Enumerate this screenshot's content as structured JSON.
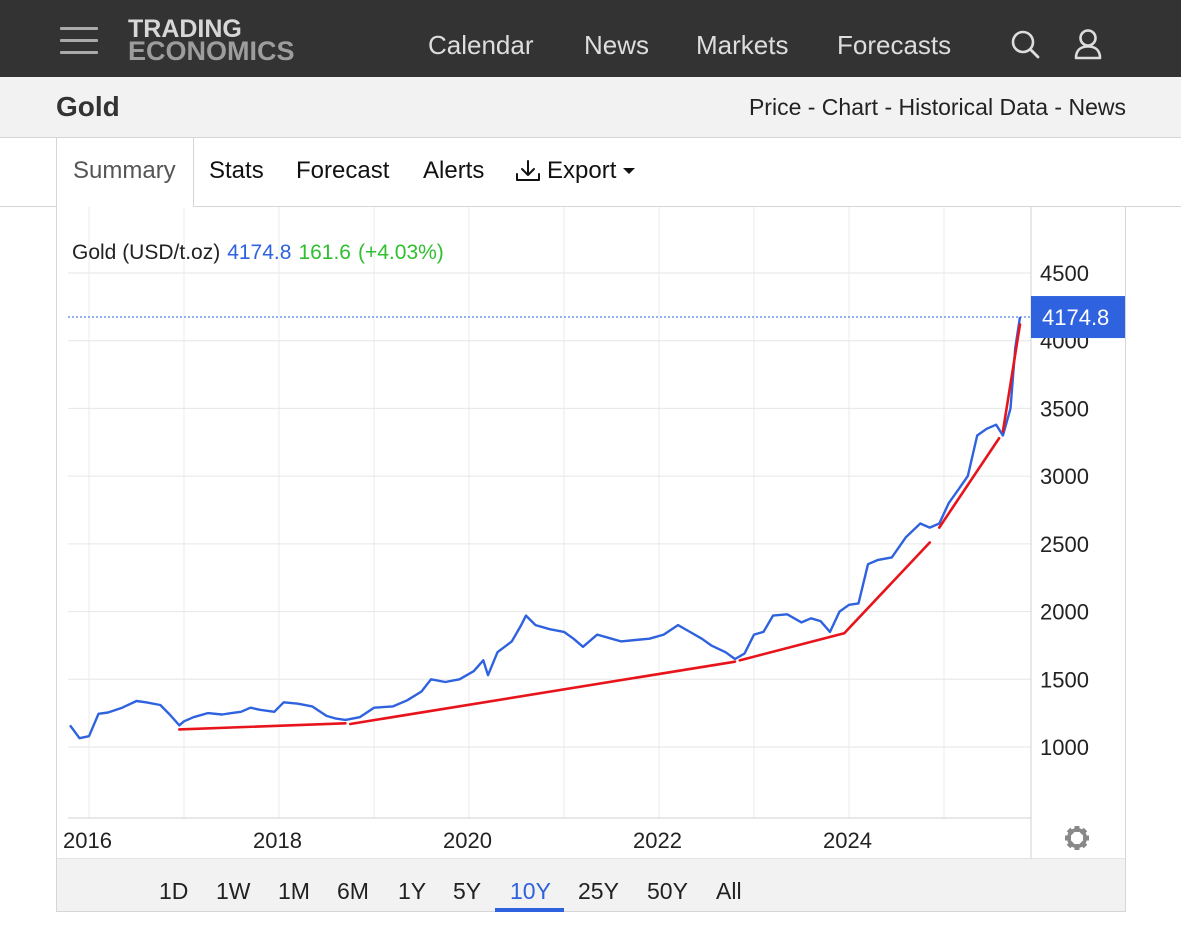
{
  "header": {
    "logo_line1": "TRADING",
    "logo_line2": "ECONOMICS",
    "nav": [
      "Calendar",
      "News",
      "Markets",
      "Forecasts"
    ],
    "icons": [
      "menu-icon",
      "search-icon",
      "user-icon"
    ]
  },
  "subheader": {
    "title": "Gold",
    "links": "Price - Chart - Historical Data - News"
  },
  "tabs": {
    "summary": "Summary",
    "stats": "Stats",
    "forecast": "Forecast",
    "alerts": "Alerts",
    "export": "Export"
  },
  "chart_header": {
    "label": "Gold (USD/t.oz)",
    "price": "4174.8",
    "change": "161.6",
    "change_pct": "(+4.03%)",
    "last_value_badge": "4174.8"
  },
  "ranges": {
    "items": [
      "1D",
      "1W",
      "1M",
      "6M",
      "1Y",
      "5Y",
      "10Y",
      "25Y",
      "50Y",
      "All"
    ],
    "selected": "10Y"
  },
  "colors": {
    "topbar": "#333333",
    "series": "#2f62df",
    "trendlines": "#e8141b",
    "change_positive": "#2fbf2f",
    "badge": "#2f62df"
  },
  "chart_data": {
    "type": "line",
    "title": "Gold (USD/t.oz)",
    "xlabel": "",
    "ylabel": "",
    "x_ticks": [
      "2016",
      "2018",
      "2020",
      "2022",
      "2024"
    ],
    "y_ticks": [
      1000,
      1500,
      2000,
      2500,
      3000,
      3500,
      4000,
      4500
    ],
    "xlim": [
      2015.8,
      2025.85
    ],
    "ylim": [
      500,
      4700
    ],
    "grid": true,
    "last_value": 4174.8,
    "series": [
      {
        "x": [
          2015.8,
          2015.9,
          2016.0,
          2016.1,
          2016.2,
          2016.35,
          2016.5,
          2016.6,
          2016.75,
          2016.85,
          2016.95,
          2017.0,
          2017.1,
          2017.25,
          2017.4,
          2017.5,
          2017.6,
          2017.7,
          2017.8,
          2017.95,
          2018.05,
          2018.2,
          2018.35,
          2018.5,
          2018.6,
          2018.7,
          2018.85,
          2019.0,
          2019.2,
          2019.35,
          2019.5,
          2019.6,
          2019.75,
          2019.9,
          2020.05,
          2020.15,
          2020.2,
          2020.3,
          2020.45,
          2020.55,
          2020.6,
          2020.7,
          2020.85,
          2021.0,
          2021.1,
          2021.2,
          2021.35,
          2021.5,
          2021.6,
          2021.75,
          2021.9,
          2022.05,
          2022.2,
          2022.3,
          2022.45,
          2022.55,
          2022.7,
          2022.8,
          2022.9,
          2023.0,
          2023.1,
          2023.2,
          2023.35,
          2023.5,
          2023.6,
          2023.7,
          2023.8,
          2023.9,
          2024.0,
          2024.1,
          2024.2,
          2024.3,
          2024.45,
          2024.6,
          2024.75,
          2024.85,
          2024.95,
          2025.05,
          2025.15,
          2025.25,
          2025.35,
          2025.45,
          2025.55,
          2025.62,
          2025.7,
          2025.75,
          2025.8
        ],
        "y": [
          1160,
          1065,
          1080,
          1245,
          1255,
          1290,
          1340,
          1330,
          1310,
          1240,
          1160,
          1190,
          1220,
          1250,
          1240,
          1250,
          1260,
          1290,
          1275,
          1260,
          1330,
          1320,
          1300,
          1230,
          1210,
          1200,
          1220,
          1290,
          1300,
          1345,
          1410,
          1500,
          1480,
          1500,
          1560,
          1640,
          1530,
          1700,
          1780,
          1900,
          1970,
          1900,
          1870,
          1850,
          1800,
          1740,
          1830,
          1800,
          1780,
          1790,
          1800,
          1830,
          1900,
          1860,
          1800,
          1750,
          1700,
          1650,
          1690,
          1830,
          1850,
          1970,
          1980,
          1920,
          1950,
          1930,
          1850,
          2000,
          2050,
          2060,
          2350,
          2380,
          2400,
          2550,
          2650,
          2620,
          2650,
          2800,
          2900,
          3000,
          3300,
          3350,
          3380,
          3300,
          3500,
          3950,
          4174.8
        ]
      }
    ],
    "trendlines": [
      {
        "x": [
          2016.95,
          2018.7
        ],
        "y": [
          1130,
          1175
        ]
      },
      {
        "x": [
          2018.75,
          2022.8
        ],
        "y": [
          1170,
          1630
        ]
      },
      {
        "x": [
          2022.85,
          2023.95
        ],
        "y": [
          1640,
          1840
        ]
      },
      {
        "x": [
          2023.95,
          2024.85
        ],
        "y": [
          1840,
          2510
        ]
      },
      {
        "x": [
          2024.95,
          2025.58
        ],
        "y": [
          2620,
          3280
        ]
      },
      {
        "x": [
          2025.62,
          2025.8
        ],
        "y": [
          3330,
          4120
        ]
      }
    ]
  }
}
